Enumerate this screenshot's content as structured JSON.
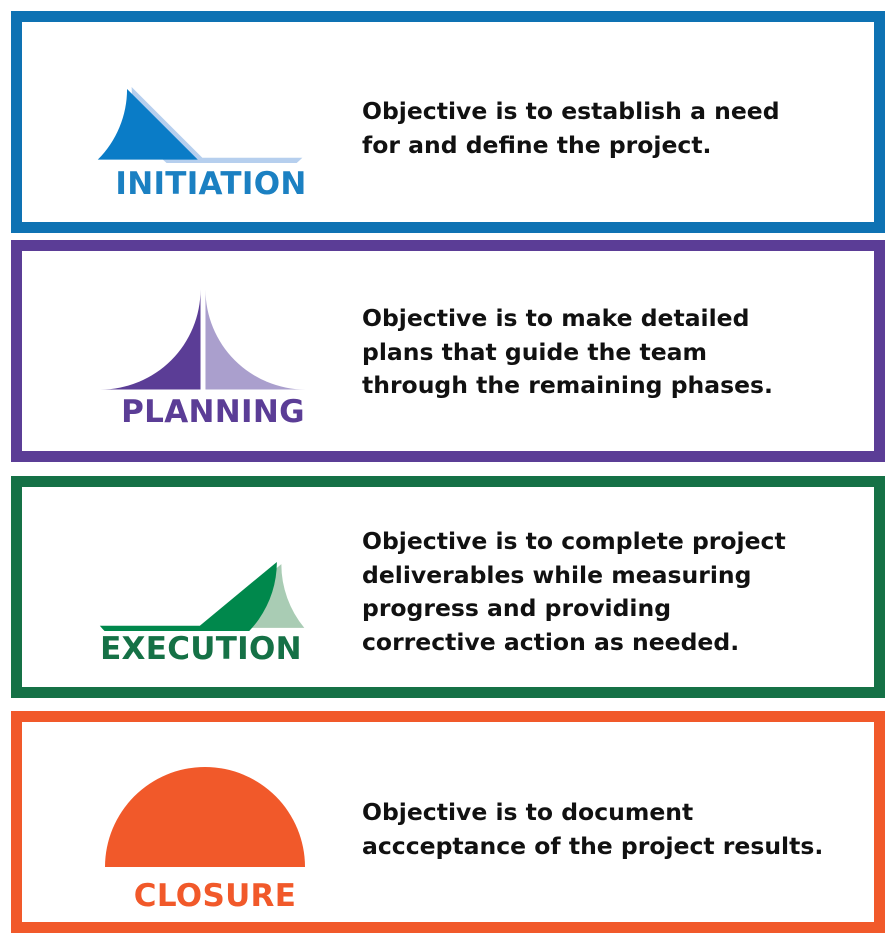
{
  "phases": [
    {
      "id": "initiation",
      "name": "INITIATION",
      "objective": "Objective is to establish a need\nfor and define the project.",
      "progress": 0.25,
      "color": "#0e72b3",
      "label_color": "#1b80c2",
      "dark_color": "#0a7cc7",
      "light_color": "#b6cfee"
    },
    {
      "id": "planning",
      "name": "PLANNING",
      "objective": "Objective is to make detailed\nplans that guide the team\nthrough the remaining phases.",
      "progress": 0.5,
      "color": "#5b3d96",
      "label_color": "#5b3d96",
      "dark_color": "#5b3d96",
      "light_color": "#aa9fcd"
    },
    {
      "id": "execution",
      "name": "EXECUTION",
      "objective": "Objective is to complete project\ndeliverables while measuring\nprogress and providing\ncorrective action as needed.",
      "progress": 0.78,
      "color": "#157146",
      "label_color": "#157146",
      "dark_color": "#00884c",
      "light_color": "#a9ccb4"
    },
    {
      "id": "closure",
      "name": "CLOSURE",
      "objective": "Objective is to document\naccceptance of the project results.",
      "progress": 1.0,
      "color": "#f1592a",
      "label_color": "#f1592a",
      "dark_color": "#f1592a",
      "light_color": "#f8b49f"
    }
  ]
}
